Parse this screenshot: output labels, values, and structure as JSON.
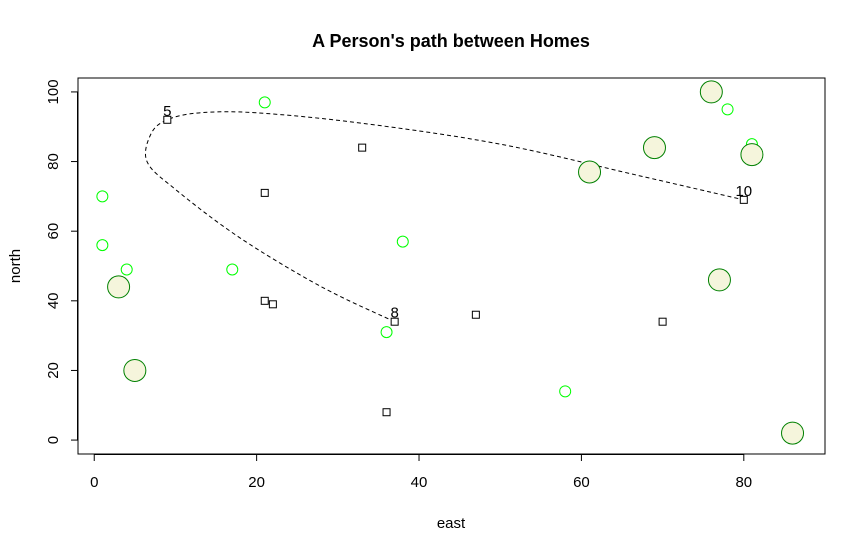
{
  "chart_data": {
    "type": "scatter",
    "title": "A Person's path between Homes",
    "xlabel": "east",
    "ylabel": "north",
    "xlim": [
      -2,
      90
    ],
    "ylim": [
      -4,
      104
    ],
    "x_ticks": [
      0,
      20,
      40,
      60,
      80
    ],
    "y_ticks": [
      0,
      20,
      40,
      60,
      80,
      100
    ],
    "grid": false,
    "colors": {
      "small_circle": "#00ff00",
      "large_circle_stroke": "#008000",
      "large_circle_fill": "#f5f5dc",
      "square": "#000000",
      "path": "#000000"
    },
    "series": [
      {
        "marker": "small-circle",
        "points": [
          {
            "x": 1,
            "y": 70
          },
          {
            "x": 1,
            "y": 56
          },
          {
            "x": 4,
            "y": 49
          },
          {
            "x": 17,
            "y": 49
          },
          {
            "x": 21,
            "y": 97
          },
          {
            "x": 36,
            "y": 31
          },
          {
            "x": 38,
            "y": 57
          },
          {
            "x": 58,
            "y": 14
          },
          {
            "x": 78,
            "y": 95
          },
          {
            "x": 81,
            "y": 85
          }
        ]
      },
      {
        "marker": "large-circle",
        "points": [
          {
            "x": 3,
            "y": 44
          },
          {
            "x": 5,
            "y": 20
          },
          {
            "x": 61,
            "y": 77
          },
          {
            "x": 69,
            "y": 84
          },
          {
            "x": 76,
            "y": 100
          },
          {
            "x": 77,
            "y": 46
          },
          {
            "x": 81,
            "y": 82
          },
          {
            "x": 86,
            "y": 2
          }
        ]
      },
      {
        "marker": "square",
        "points": [
          {
            "x": 9,
            "y": 92
          },
          {
            "x": 21,
            "y": 71
          },
          {
            "x": 21,
            "y": 40
          },
          {
            "x": 22,
            "y": 39
          },
          {
            "x": 33,
            "y": 84
          },
          {
            "x": 36,
            "y": 8
          },
          {
            "x": 37,
            "y": 34
          },
          {
            "x": 47,
            "y": 36
          },
          {
            "x": 70,
            "y": 34
          },
          {
            "x": 80,
            "y": 69
          }
        ]
      }
    ],
    "path": {
      "style": "dashed",
      "points": [
        {
          "x": 37,
          "y": 34
        },
        {
          "x": 28,
          "y": 44
        },
        {
          "x": 18,
          "y": 58
        },
        {
          "x": 10,
          "y": 72
        },
        {
          "x": 6.5,
          "y": 80
        },
        {
          "x": 7,
          "y": 88
        },
        {
          "x": 9,
          "y": 92
        },
        {
          "x": 13,
          "y": 94
        },
        {
          "x": 20,
          "y": 94
        },
        {
          "x": 33,
          "y": 91
        },
        {
          "x": 50,
          "y": 85
        },
        {
          "x": 67,
          "y": 76
        },
        {
          "x": 80,
          "y": 69
        }
      ]
    },
    "annotations": [
      {
        "text": "5",
        "x": 9,
        "y": 92
      },
      {
        "text": "8",
        "x": 37,
        "y": 34
      },
      {
        "text": "10",
        "x": 80,
        "y": 69
      }
    ]
  }
}
